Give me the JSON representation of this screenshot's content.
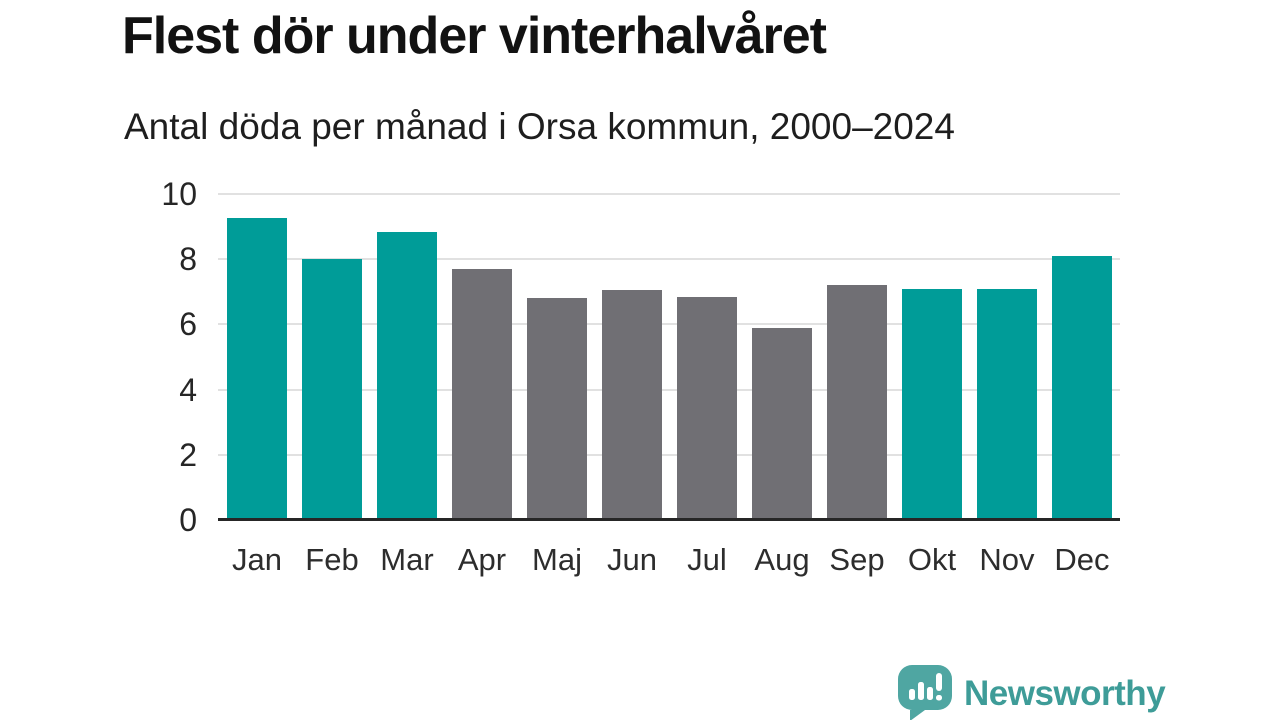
{
  "header": {
    "title": "Flest dör under vinterhalvåret",
    "subtitle": "Antal döda per månad i Orsa kommun, 2000–2024"
  },
  "chart_data": {
    "type": "bar",
    "categories": [
      "Jan",
      "Feb",
      "Mar",
      "Apr",
      "Maj",
      "Jun",
      "Jul",
      "Aug",
      "Sep",
      "Okt",
      "Nov",
      "Dec"
    ],
    "values": [
      9.25,
      8.0,
      8.85,
      7.7,
      6.8,
      7.05,
      6.85,
      5.9,
      7.2,
      7.1,
      7.1,
      8.1
    ],
    "bar_color_keys": [
      "teal",
      "teal",
      "teal",
      "gray",
      "gray",
      "gray",
      "gray",
      "gray",
      "gray",
      "teal",
      "teal",
      "teal"
    ],
    "colors": {
      "teal": "#009c98",
      "gray": "#706f74"
    },
    "title": "Flest dör under vinterhalvåret",
    "subtitle": "Antal döda per månad i Orsa kommun, 2000–2024",
    "xlabel": "",
    "ylabel": "",
    "ylim": [
      0,
      10
    ],
    "yticks": [
      0,
      2,
      4,
      6,
      8,
      10
    ],
    "grid": "horizontal",
    "legend": "none"
  },
  "footer": {
    "brand": "Newsworthy",
    "icon_color": "#4fa6a2",
    "text_color": "#3e9c98"
  }
}
